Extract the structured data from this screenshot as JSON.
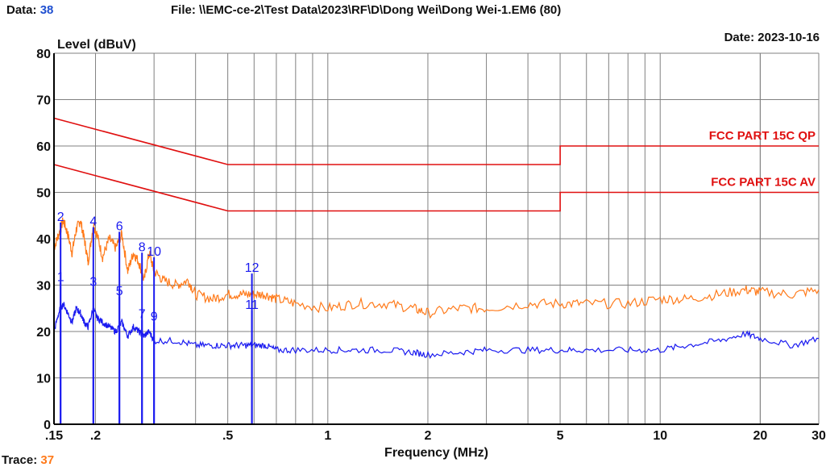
{
  "header": {
    "data_label": "Data:",
    "data_value": "38",
    "file_text": "File: \\\\EMC-ce-2\\Test Data\\2023\\RF\\D\\Dong Wei\\Dong Wei-1.EM6  (80)",
    "date_text": "Date: 2023-10-16",
    "trace_label": "Trace:",
    "trace_value": "37"
  },
  "colors": {
    "qp_trace": "#ff7a1a",
    "av_trace": "#1a1af0",
    "limit": "#e01010",
    "grid": "#808080"
  },
  "chart_data": {
    "type": "line",
    "xlabel": "Frequency (MHz)",
    "ylabel": "Level (dBuV)",
    "xscale": "log",
    "xlim": [
      0.15,
      30
    ],
    "ylim": [
      0,
      80
    ],
    "yticks": [
      0,
      10,
      20,
      30,
      40,
      50,
      60,
      70,
      80
    ],
    "xticks": [
      {
        "v": 0.15,
        "label": ".15"
      },
      {
        "v": 0.2,
        "label": ".2"
      },
      {
        "v": 0.5,
        "label": ".5"
      },
      {
        "v": 1,
        "label": "1"
      },
      {
        "v": 2,
        "label": "2"
      },
      {
        "v": 5,
        "label": "5"
      },
      {
        "v": 10,
        "label": "10"
      },
      {
        "v": 20,
        "label": "20"
      },
      {
        "v": 30,
        "label": "30"
      }
    ],
    "grid": true,
    "limits": [
      {
        "name": "FCC PART 15C QP",
        "points": [
          [
            0.15,
            66
          ],
          [
            0.5,
            56
          ],
          [
            5,
            56
          ],
          [
            5,
            60
          ],
          [
            30,
            60
          ]
        ]
      },
      {
        "name": "FCC PART 15C AV",
        "points": [
          [
            0.15,
            56
          ],
          [
            0.5,
            46
          ],
          [
            5,
            46
          ],
          [
            5,
            50
          ],
          [
            30,
            50
          ]
        ]
      }
    ],
    "series": [
      {
        "key": "qp",
        "points": [
          [
            0.15,
            38
          ],
          [
            0.155,
            41
          ],
          [
            0.16,
            44
          ],
          [
            0.165,
            41
          ],
          [
            0.17,
            37
          ],
          [
            0.175,
            42
          ],
          [
            0.18,
            44
          ],
          [
            0.185,
            40
          ],
          [
            0.19,
            35
          ],
          [
            0.197,
            43
          ],
          [
            0.202,
            41
          ],
          [
            0.21,
            36
          ],
          [
            0.22,
            40
          ],
          [
            0.23,
            38
          ],
          [
            0.24,
            41
          ],
          [
            0.25,
            33
          ],
          [
            0.26,
            37
          ],
          [
            0.27,
            35
          ],
          [
            0.28,
            31
          ],
          [
            0.29,
            37
          ],
          [
            0.3,
            33
          ],
          [
            0.32,
            31
          ],
          [
            0.35,
            30
          ],
          [
            0.38,
            31
          ],
          [
            0.4,
            28
          ],
          [
            0.45,
            27
          ],
          [
            0.5,
            28
          ],
          [
            0.55,
            28
          ],
          [
            0.6,
            28
          ],
          [
            0.65,
            28
          ],
          [
            0.7,
            27
          ],
          [
            0.8,
            26
          ],
          [
            1.0,
            25
          ],
          [
            1.2,
            26
          ],
          [
            1.5,
            26
          ],
          [
            1.8,
            25
          ],
          [
            2.0,
            24
          ],
          [
            2.5,
            25
          ],
          [
            3.0,
            25
          ],
          [
            4.0,
            26
          ],
          [
            5.0,
            26
          ],
          [
            6.0,
            26
          ],
          [
            8.0,
            26
          ],
          [
            10.0,
            27
          ],
          [
            12.0,
            27
          ],
          [
            15.0,
            28
          ],
          [
            18.0,
            29
          ],
          [
            20.0,
            28.5
          ],
          [
            25.0,
            28
          ],
          [
            30.0,
            29
          ]
        ]
      },
      {
        "key": "av",
        "points": [
          [
            0.15,
            20
          ],
          [
            0.155,
            24
          ],
          [
            0.16,
            26
          ],
          [
            0.165,
            24
          ],
          [
            0.17,
            22
          ],
          [
            0.175,
            25
          ],
          [
            0.18,
            24
          ],
          [
            0.185,
            22
          ],
          [
            0.19,
            21
          ],
          [
            0.197,
            25
          ],
          [
            0.202,
            23
          ],
          [
            0.21,
            22
          ],
          [
            0.22,
            21
          ],
          [
            0.23,
            20
          ],
          [
            0.24,
            22
          ],
          [
            0.25,
            19
          ],
          [
            0.26,
            21
          ],
          [
            0.27,
            20
          ],
          [
            0.28,
            19
          ],
          [
            0.29,
            20
          ],
          [
            0.3,
            18
          ],
          [
            0.35,
            18
          ],
          [
            0.4,
            17
          ],
          [
            0.45,
            17
          ],
          [
            0.5,
            17
          ],
          [
            0.55,
            17
          ],
          [
            0.6,
            17
          ],
          [
            0.65,
            17
          ],
          [
            0.7,
            16
          ],
          [
            0.8,
            16
          ],
          [
            1.0,
            16
          ],
          [
            1.2,
            16
          ],
          [
            1.5,
            16
          ],
          [
            1.8,
            15.5
          ],
          [
            2.0,
            15
          ],
          [
            2.5,
            15.5
          ],
          [
            3.0,
            16
          ],
          [
            4.0,
            16
          ],
          [
            5.0,
            16
          ],
          [
            6.0,
            16
          ],
          [
            8.0,
            16
          ],
          [
            10.0,
            16
          ],
          [
            12.0,
            17
          ],
          [
            15.0,
            18
          ],
          [
            18.0,
            19.5
          ],
          [
            20.0,
            18.5
          ],
          [
            25.0,
            17
          ],
          [
            30.0,
            18.5
          ]
        ]
      }
    ],
    "markers": [
      {
        "label": "1",
        "freq": 0.157,
        "level": 30.5
      },
      {
        "label": "2",
        "freq": 0.157,
        "level": 43.5
      },
      {
        "label": "3",
        "freq": 0.197,
        "level": 29.5
      },
      {
        "label": "4",
        "freq": 0.197,
        "level": 42.5
      },
      {
        "label": "5",
        "freq": 0.236,
        "level": 27.5
      },
      {
        "label": "6",
        "freq": 0.236,
        "level": 41.5
      },
      {
        "label": "7",
        "freq": 0.276,
        "level": 22.5
      },
      {
        "label": "8",
        "freq": 0.276,
        "level": 37
      },
      {
        "label": "9",
        "freq": 0.3,
        "level": 22
      },
      {
        "label": "10",
        "freq": 0.3,
        "level": 36
      },
      {
        "label": "11",
        "freq": 0.591,
        "level": 24.5
      },
      {
        "label": "12",
        "freq": 0.591,
        "level": 32.5
      }
    ]
  }
}
